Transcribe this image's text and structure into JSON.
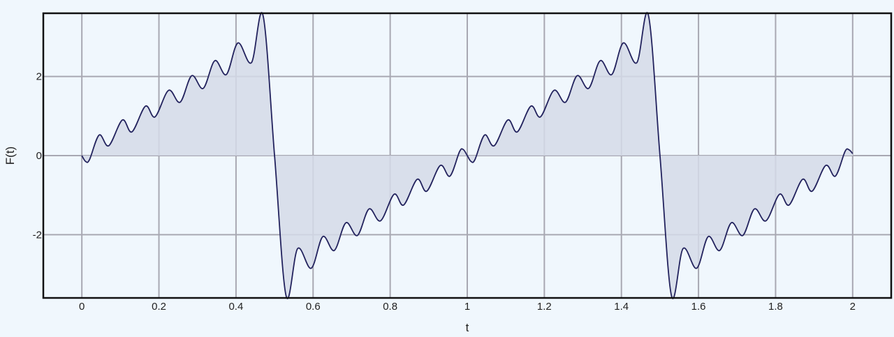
{
  "chart_data": {
    "type": "area",
    "title": "",
    "xlabel": "t",
    "ylabel": "F(t)",
    "xlim": [
      -0.1,
      2.1
    ],
    "ylim": [
      -3.6,
      3.6
    ],
    "xticks": [
      0,
      0.2,
      0.4,
      0.6,
      0.8,
      1,
      1.2,
      1.4,
      1.6,
      1.8,
      2
    ],
    "xtick_labels": [
      "0",
      "0.2",
      "0.4",
      "0.6",
      "0.8",
      "1",
      "1.2",
      "1.4",
      "1.6",
      "1.8",
      "2"
    ],
    "yticks": [
      -2,
      0,
      2
    ],
    "ytick_labels": [
      "-2",
      "0",
      "2"
    ],
    "grid": true,
    "period": 1,
    "series": [
      {
        "x": [
          0,
          0.01,
          0.02,
          0.045,
          0.07,
          0.105,
          0.13,
          0.165,
          0.19,
          0.225,
          0.255,
          0.285,
          0.315,
          0.345,
          0.375,
          0.405,
          0.44,
          0.47,
          0.5,
          0.53,
          0.56,
          0.595,
          0.625,
          0.655,
          0.685,
          0.715,
          0.745,
          0.775,
          0.81,
          0.835,
          0.87,
          0.895,
          0.93,
          0.955,
          0.98,
          0.99,
          1.0,
          1.01,
          1.02,
          1.045,
          1.07,
          1.105,
          1.13,
          1.165,
          1.19,
          1.225,
          1.255,
          1.285,
          1.315,
          1.345,
          1.375,
          1.405,
          1.44,
          1.47,
          1.5,
          1.53,
          1.56,
          1.595,
          1.625,
          1.655,
          1.685,
          1.715,
          1.745,
          1.775,
          1.81,
          1.835,
          1.87,
          1.895,
          1.93,
          1.955,
          1.98,
          1.99,
          2.0
        ],
        "y": [
          0,
          -0.15,
          -0.1,
          0.52,
          0.25,
          0.9,
          0.6,
          1.25,
          0.98,
          1.65,
          1.35,
          2.02,
          1.7,
          2.4,
          2.05,
          2.85,
          2.35,
          3.55,
          0,
          -3.55,
          -2.35,
          -2.85,
          -2.05,
          -2.4,
          -1.7,
          -2.02,
          -1.35,
          -1.65,
          -0.98,
          -1.25,
          -0.6,
          -0.9,
          -0.25,
          -0.52,
          0.1,
          0.15,
          0,
          -0.15,
          -0.1,
          0.52,
          0.25,
          0.9,
          0.6,
          1.25,
          0.98,
          1.65,
          1.35,
          2.02,
          1.7,
          2.4,
          2.05,
          2.85,
          2.35,
          3.55,
          0,
          -3.55,
          -2.35,
          -2.85,
          -2.05,
          -2.4,
          -1.7,
          -2.02,
          -1.35,
          -1.65,
          -0.98,
          -1.25,
          -0.6,
          -0.9,
          -0.25,
          -0.52,
          0.1,
          0.15,
          0.05
        ]
      }
    ],
    "colors": {
      "background": "#f0f7fd",
      "grid": "#a8a8b2",
      "line": "#23235e",
      "fill": "#d5dbe8",
      "frame": "#111111"
    }
  }
}
